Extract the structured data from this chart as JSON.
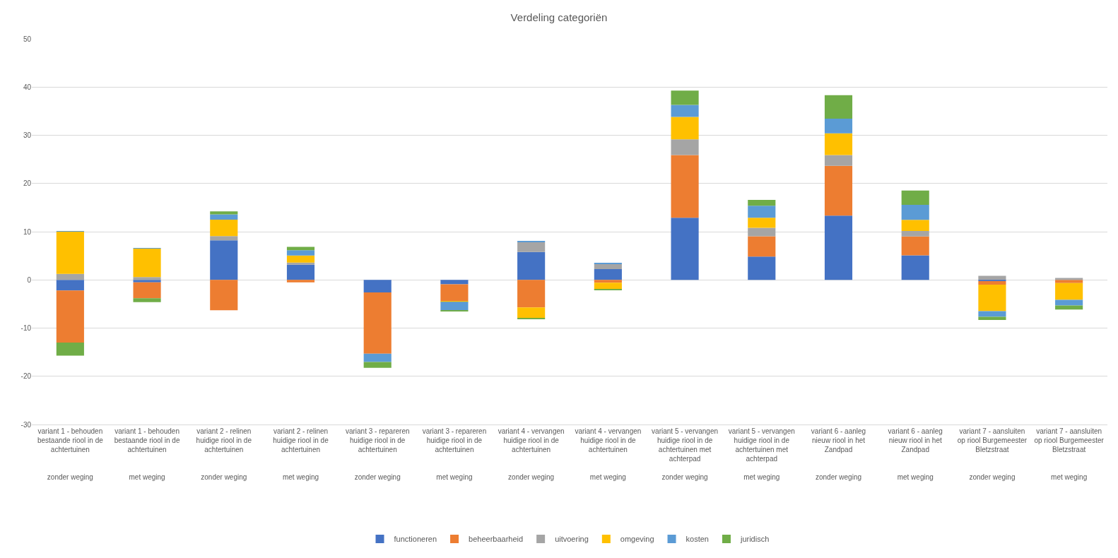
{
  "chart_data": {
    "type": "bar",
    "title": "Verdeling categoriën",
    "stacked": true,
    "categories": [
      "variant 1 - behouden bestaande riool in de achtertuinen\nzonder weging",
      "variant 1 - behouden bestaande riool in de achtertuinen\nmet weging",
      "variant 2 - relinen huidige riool in de achtertuinen\nzonder weging",
      "variant 2 - relinen huidige riool in de achtertuinen\nmet weging",
      "variant 3 - repareren huidige riool in de achtertuinen\nzonder weging",
      "variant 3 - repareren huidige riool in de achtertuinen\nmet weging",
      "variant 4 - vervangen huidige riool in de achtertuinen\nzonder weging",
      "variant 4 - vervangen huidige riool in de achtertuinen\nmet weging",
      "variant 5 - vervangen huidige riool in de achtertuinen met achterpad\nzonder weging",
      "variant 5 - vervangen huidige riool in de achtertuinen met achterpad\nmet weging",
      "variant 6 - aanleg nieuw riool in het Zandpad\nzonder weging",
      "variant 6 - aanleg nieuw riool in het Zandpad\nmet weging",
      "variant 7 - aansluiten op riool Burgemeester Bletzstraat\nzonder weging",
      "variant 7 - aansluiten op riool Burgemeester Bletzstraat\nmet weging"
    ],
    "series": [
      {
        "name": "functioneren",
        "color": "#4472c4",
        "values": [
          -2.2,
          -0.5,
          8.2,
          3.15,
          -2.6,
          -0.9,
          5.8,
          2.25,
          12.9,
          4.85,
          13.35,
          5.1,
          -0.25,
          0
        ]
      },
      {
        "name": "beheerbaarheid",
        "color": "#ed7d31",
        "values": [
          -10.8,
          -3.3,
          -6.3,
          -0.5,
          -12.7,
          -3.5,
          -5.7,
          -0.6,
          13.0,
          4.2,
          10.3,
          3.9,
          -0.75,
          -0.65
        ]
      },
      {
        "name": "uitvoering",
        "color": "#a5a5a5",
        "values": [
          1.25,
          0.6,
          0.9,
          0.45,
          0,
          0,
          2.05,
          1.05,
          3.25,
          1.75,
          2.25,
          1.15,
          0.85,
          0.4
        ]
      },
      {
        "name": "omgeving",
        "color": "#ffc000",
        "values": [
          8.75,
          5.9,
          3.4,
          1.45,
          0,
          -0.15,
          -2.2,
          -1.4,
          4.65,
          2.1,
          4.5,
          2.3,
          -5.5,
          -3.5
        ]
      },
      {
        "name": "kosten",
        "color": "#5b9bd5",
        "values": [
          0.1,
          0.1,
          1.1,
          1.1,
          -1.75,
          -1.7,
          0.15,
          0.15,
          2.5,
          2.5,
          3.05,
          3.1,
          -1.15,
          -1.15
        ]
      },
      {
        "name": "juridisch",
        "color": "#70ad47",
        "values": [
          -2.7,
          -0.8,
          0.6,
          0.7,
          -1.2,
          -0.3,
          -0.15,
          -0.15,
          2.95,
          1.2,
          4.85,
          3.0,
          -0.65,
          -0.85
        ]
      }
    ],
    "ylim": [
      -30,
      50
    ],
    "yticks": [
      -30,
      -20,
      -10,
      0,
      10,
      20,
      30,
      40,
      50
    ],
    "grid": "y",
    "legend": "bottom"
  }
}
